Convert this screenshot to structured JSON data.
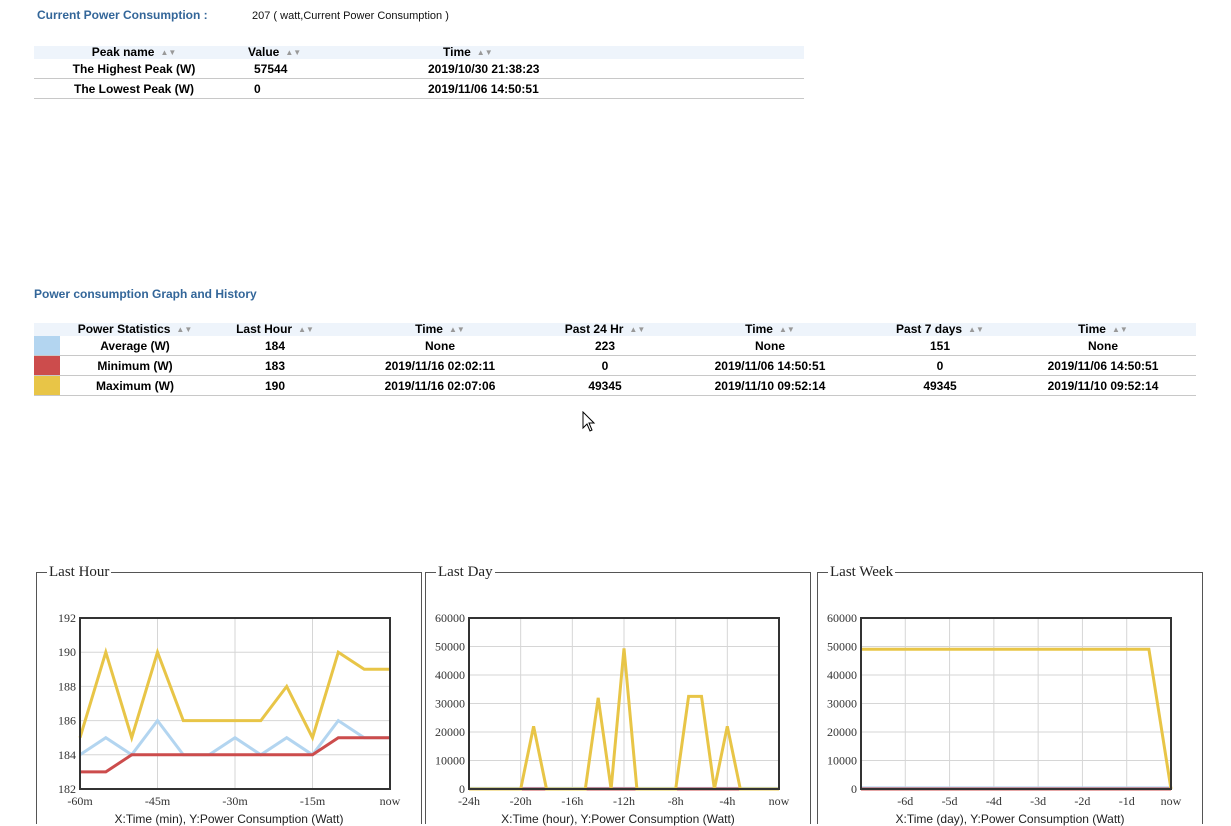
{
  "current": {
    "label": "Current Power Consumption :",
    "value": "207 ( watt,Current Power Consumption )"
  },
  "peak_table": {
    "headers": [
      "Peak name",
      "Value",
      "Time"
    ],
    "rows": [
      {
        "name": "The Highest Peak (W)",
        "value": "57544",
        "time": "2019/10/30 21:38:23"
      },
      {
        "name": "The Lowest Peak (W)",
        "value": "0",
        "time": "2019/11/06 14:50:51"
      }
    ]
  },
  "section_title": "Power consumption Graph and History",
  "stats_table": {
    "headers": [
      "Power Statistics",
      "Last Hour",
      "Time",
      "Past 24 Hr",
      "Time",
      "Past 7 days",
      "Time"
    ],
    "rows": [
      {
        "color": "#b3d5f0",
        "name": "Average (W)",
        "last_hour": "184",
        "lh_time": "None",
        "past24": "223",
        "p24_time": "None",
        "past7": "151",
        "p7_time": "None"
      },
      {
        "color": "#cc4c4c",
        "name": "Minimum (W)",
        "last_hour": "183",
        "lh_time": "2019/11/16 02:02:11",
        "past24": "0",
        "p24_time": "2019/11/06 14:50:51",
        "past7": "0",
        "p7_time": "2019/11/06 14:50:51"
      },
      {
        "color": "#e8c547",
        "name": "Maximum (W)",
        "last_hour": "190",
        "lh_time": "2019/11/16 02:07:06",
        "past24": "49345",
        "p24_time": "2019/11/10 09:52:14",
        "past7": "49345",
        "p7_time": "2019/11/10 09:52:14"
      }
    ]
  },
  "chart_data": [
    {
      "type": "line",
      "title": "Last Hour",
      "xlabel": "X:Time (min), Y:Power Consumption (Watt)",
      "ylim": [
        182,
        192
      ],
      "yticks": [
        182,
        184,
        186,
        188,
        190,
        192
      ],
      "xlim": [
        -60,
        0
      ],
      "xticks": [
        {
          "v": -60,
          "label": "-60m"
        },
        {
          "v": -45,
          "label": "-45m"
        },
        {
          "v": -30,
          "label": "-30m"
        },
        {
          "v": -15,
          "label": "-15m"
        },
        {
          "v": 0,
          "label": "now"
        }
      ],
      "grid": true,
      "series": [
        {
          "color": "#b3d5f0",
          "points": [
            [
              -60,
              184
            ],
            [
              -55,
              185
            ],
            [
              -50,
              184
            ],
            [
              -45,
              186
            ],
            [
              -40,
              184
            ],
            [
              -35,
              184
            ],
            [
              -30,
              185
            ],
            [
              -25,
              184
            ],
            [
              -20,
              185
            ],
            [
              -15,
              184
            ],
            [
              -10,
              186
            ],
            [
              -5,
              185
            ],
            [
              0,
              185
            ]
          ]
        },
        {
          "color": "#cc4c4c",
          "points": [
            [
              -60,
              183
            ],
            [
              -55,
              183
            ],
            [
              -50,
              184
            ],
            [
              -45,
              184
            ],
            [
              -40,
              184
            ],
            [
              -35,
              184
            ],
            [
              -30,
              184
            ],
            [
              -25,
              184
            ],
            [
              -20,
              184
            ],
            [
              -15,
              184
            ],
            [
              -10,
              185
            ],
            [
              -5,
              185
            ],
            [
              0,
              185
            ]
          ]
        },
        {
          "color": "#e8c547",
          "points": [
            [
              -60,
              185
            ],
            [
              -55,
              190
            ],
            [
              -50,
              185
            ],
            [
              -45,
              190
            ],
            [
              -40,
              186
            ],
            [
              -35,
              186
            ],
            [
              -30,
              186
            ],
            [
              -25,
              186
            ],
            [
              -20,
              188
            ],
            [
              -15,
              185
            ],
            [
              -10,
              190
            ],
            [
              -5,
              189
            ],
            [
              0,
              189
            ]
          ]
        }
      ]
    },
    {
      "type": "line",
      "title": "Last Day",
      "xlabel": "X:Time (hour), Y:Power Consumption (Watt)",
      "ylim": [
        0,
        60000
      ],
      "yticks": [
        0,
        10000,
        20000,
        30000,
        40000,
        50000,
        60000
      ],
      "xlim": [
        -24,
        0
      ],
      "xticks": [
        {
          "v": -24,
          "label": "-24h"
        },
        {
          "v": -20,
          "label": "-20h"
        },
        {
          "v": -16,
          "label": "-16h"
        },
        {
          "v": -12,
          "label": "-12h"
        },
        {
          "v": -8,
          "label": "-8h"
        },
        {
          "v": -4,
          "label": "-4h"
        },
        {
          "v": 0,
          "label": "now"
        }
      ],
      "grid": true,
      "series": [
        {
          "color": "#b3d5f0",
          "points": [
            [
              -24,
              200
            ],
            [
              0,
              200
            ]
          ]
        },
        {
          "color": "#cc4c4c",
          "points": [
            [
              -24,
              0
            ],
            [
              0,
              0
            ]
          ]
        },
        {
          "color": "#e8c547",
          "points": [
            [
              -24,
              0
            ],
            [
              -20,
              0
            ],
            [
              -19,
              22000
            ],
            [
              -18,
              0
            ],
            [
              -15,
              0
            ],
            [
              -14,
              32000
            ],
            [
              -13,
              0
            ],
            [
              -12,
              49345
            ],
            [
              -11,
              0
            ],
            [
              -8,
              0
            ],
            [
              -7,
              32500
            ],
            [
              -6,
              32500
            ],
            [
              -5,
              0
            ],
            [
              -4,
              22000
            ],
            [
              -3,
              0
            ],
            [
              0,
              0
            ]
          ]
        }
      ]
    },
    {
      "type": "line",
      "title": "Last Week",
      "xlabel": "X:Time (day), Y:Power Consumption (Watt)",
      "ylim": [
        0,
        60000
      ],
      "yticks": [
        0,
        10000,
        20000,
        30000,
        40000,
        50000,
        60000
      ],
      "xlim": [
        -7,
        0
      ],
      "xticks": [
        {
          "v": -6,
          "label": "-6d"
        },
        {
          "v": -5,
          "label": "-5d"
        },
        {
          "v": -4,
          "label": "-4d"
        },
        {
          "v": -3,
          "label": "-3d"
        },
        {
          "v": -2,
          "label": "-2d"
        },
        {
          "v": -1,
          "label": "-1d"
        },
        {
          "v": 0,
          "label": "now"
        }
      ],
      "grid": true,
      "series": [
        {
          "color": "#b3d5f0",
          "points": [
            [
              -7,
              400
            ],
            [
              0,
              400
            ]
          ]
        },
        {
          "color": "#cc4c4c",
          "points": [
            [
              -7,
              0
            ],
            [
              0,
              0
            ]
          ]
        },
        {
          "color": "#e8c547",
          "points": [
            [
              -7,
              49000
            ],
            [
              -0.5,
              49000
            ],
            [
              0,
              0
            ]
          ]
        }
      ]
    }
  ]
}
